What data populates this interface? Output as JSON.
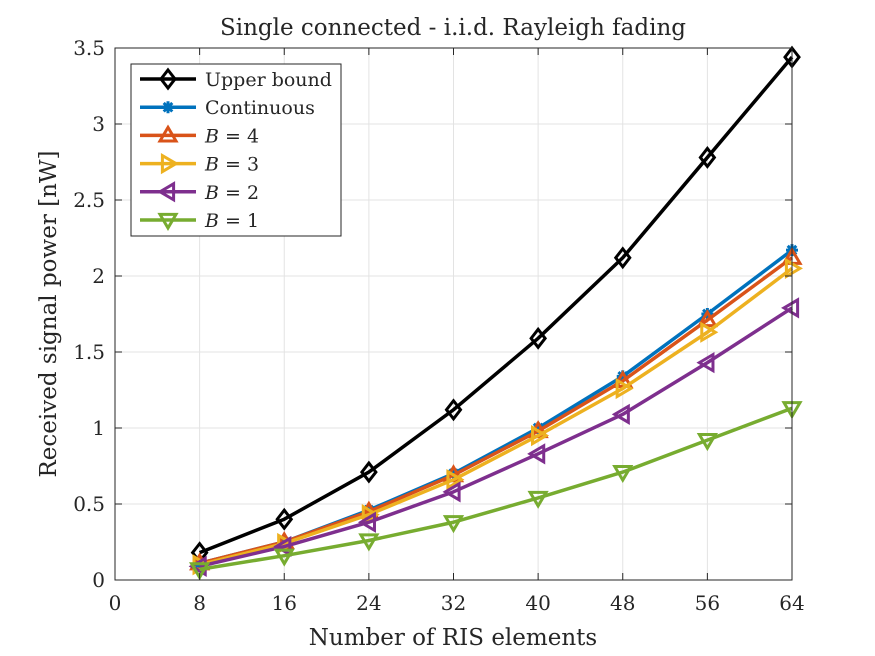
{
  "chart_data": {
    "type": "line",
    "title": "Single connected - i.i.d. Rayleigh fading",
    "xlabel": "Number of RIS elements",
    "ylabel": "Received signal power [nW]",
    "xlim": [
      0,
      64
    ],
    "ylim": [
      0,
      3.5
    ],
    "xticks": [
      0,
      8,
      16,
      24,
      32,
      40,
      48,
      56,
      64
    ],
    "yticks": [
      0,
      0.5,
      1,
      1.5,
      2,
      2.5,
      3,
      3.5
    ],
    "xtick_labels": [
      "0",
      "8",
      "16",
      "24",
      "32",
      "40",
      "48",
      "56",
      "64"
    ],
    "ytick_labels": [
      "0",
      "0.5",
      "1",
      "1.5",
      "2",
      "2.5",
      "3",
      "3.5"
    ],
    "grid": true,
    "legend_position": "top-left",
    "x": [
      8,
      16,
      24,
      32,
      40,
      48,
      56,
      64
    ],
    "series": [
      {
        "name": "Upper bound",
        "color": "#000000",
        "marker": "diamond",
        "values": [
          0.18,
          0.4,
          0.71,
          1.12,
          1.59,
          2.12,
          2.78,
          3.44
        ]
      },
      {
        "name": "Continuous",
        "color": "#0072BD",
        "marker": "asterisk",
        "values": [
          0.11,
          0.25,
          0.46,
          0.7,
          1.0,
          1.34,
          1.75,
          2.17
        ]
      },
      {
        "name": "B = 4",
        "math_var": "B",
        "math_rest": " = 4",
        "color": "#D95319",
        "marker": "triangle-up",
        "values": [
          0.11,
          0.25,
          0.45,
          0.69,
          0.98,
          1.31,
          1.71,
          2.12
        ]
      },
      {
        "name": "B = 3",
        "math_var": "B",
        "math_rest": " = 3",
        "color": "#EDB120",
        "marker": "triangle-right",
        "values": [
          0.1,
          0.24,
          0.43,
          0.66,
          0.95,
          1.26,
          1.63,
          2.05
        ]
      },
      {
        "name": "B = 2",
        "math_var": "B",
        "math_rest": " = 2",
        "color": "#7E2F8E",
        "marker": "triangle-left",
        "values": [
          0.09,
          0.22,
          0.38,
          0.58,
          0.83,
          1.09,
          1.43,
          1.79
        ]
      },
      {
        "name": "B = 1",
        "math_var": "B",
        "math_rest": " = 1",
        "color": "#77AC30",
        "marker": "triangle-down",
        "values": [
          0.07,
          0.16,
          0.26,
          0.38,
          0.54,
          0.71,
          0.92,
          1.13
        ]
      }
    ]
  }
}
